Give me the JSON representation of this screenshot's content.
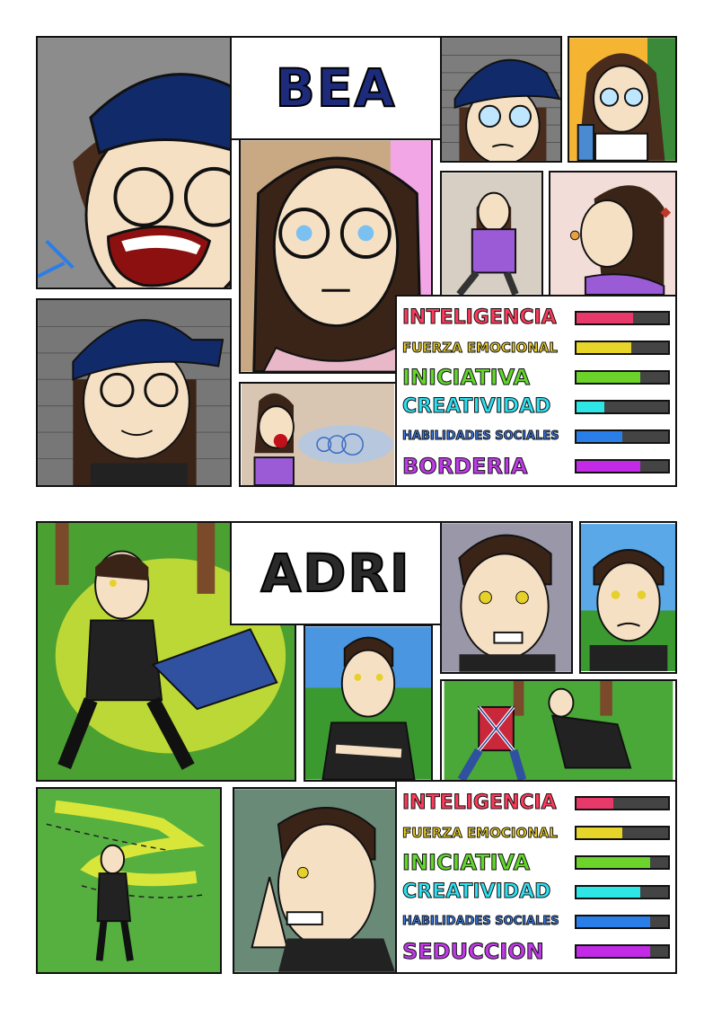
{
  "characters": [
    {
      "name": "BEA",
      "title_color": "#1d2b7a",
      "stats": [
        {
          "label": "INTELIGENCIA",
          "level": 0.62,
          "color": "#e83a6a",
          "text_color": "#ff3a5a",
          "size": 22
        },
        {
          "label": "FUERZA EMOCIONAL",
          "level": 0.6,
          "color": "#e8d52a",
          "text_color": "#f2d42a",
          "size": 15
        },
        {
          "label": "INICIATIVA",
          "level": 0.7,
          "color": "#6bd32a",
          "text_color": "#62d62a",
          "size": 24
        },
        {
          "label": "CREATIVIDAD",
          "level": 0.3,
          "color": "#2ee6e6",
          "text_color": "#2ee0f0",
          "size": 22
        },
        {
          "label": "HABILIDADES SOCIALES",
          "level": 0.5,
          "color": "#2a7ee8",
          "text_color": "#3a80f0",
          "size": 13
        },
        {
          "label": "BORDERIA",
          "level": 0.7,
          "color": "#c22ae8",
          "text_color": "#c03ae8",
          "size": 24
        }
      ]
    },
    {
      "name": "ADRI",
      "title_color": "#222222",
      "stats": [
        {
          "label": "INTELIGENCIA",
          "level": 0.4,
          "color": "#e83a6a",
          "text_color": "#ff3a5a",
          "size": 22
        },
        {
          "label": "FUERZA EMOCIONAL",
          "level": 0.5,
          "color": "#e8d52a",
          "text_color": "#f2d42a",
          "size": 15
        },
        {
          "label": "INICIATIVA",
          "level": 0.8,
          "color": "#6bd32a",
          "text_color": "#62d62a",
          "size": 24
        },
        {
          "label": "CREATIVIDAD",
          "level": 0.7,
          "color": "#2ee6e6",
          "text_color": "#2ee0f0",
          "size": 22
        },
        {
          "label": "HABILIDADES SOCIALES",
          "level": 0.8,
          "color": "#2a7ee8",
          "text_color": "#3a80f0",
          "size": 13
        },
        {
          "label": "SEDUCCION",
          "level": 0.8,
          "color": "#c22ae8",
          "text_color": "#c03ae8",
          "size": 24
        }
      ]
    }
  ]
}
